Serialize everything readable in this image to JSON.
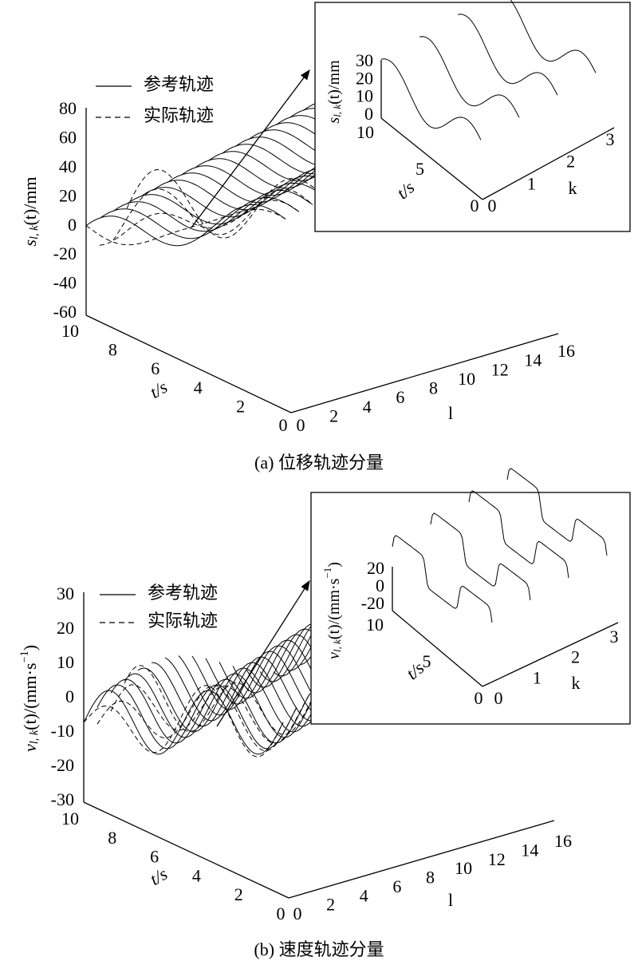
{
  "figures": [
    {
      "caption": "(a) 位移轨迹分量",
      "legend": [
        "参考轨迹",
        "实际轨迹"
      ],
      "z_label": [
        "s",
        "l, k",
        "(t)/mm"
      ],
      "z_ticks": [
        80,
        60,
        40,
        20,
        0,
        -20,
        -40,
        -60
      ],
      "t_label": "t/s",
      "t_ticks": [
        10,
        8,
        6,
        4,
        2,
        0
      ],
      "l_label": "l",
      "l_ticks": [
        0,
        2,
        4,
        6,
        8,
        10,
        12,
        14,
        16
      ],
      "inset": {
        "z_label": [
          "s",
          "l, k",
          "(t)/mm"
        ],
        "z_ticks": [
          30,
          20,
          10,
          0
        ],
        "t_label": "t/s",
        "t_ticks": [
          10,
          5,
          0
        ],
        "k_label": "k",
        "k_ticks": [
          0,
          1,
          2,
          3
        ]
      }
    },
    {
      "caption": "(b) 速度轨迹分量",
      "legend": [
        "参考轨迹",
        "实际轨迹"
      ],
      "z_label": [
        "v",
        "l, k",
        "(t)/(mm·s",
        "−1",
        ")"
      ],
      "z_ticks": [
        30,
        20,
        10,
        0,
        -10,
        -20,
        -30
      ],
      "t_label": "t/s",
      "t_ticks": [
        10,
        8,
        6,
        4,
        2,
        0
      ],
      "l_label": "l",
      "l_ticks": [
        0,
        2,
        4,
        6,
        8,
        10,
        12,
        14,
        16
      ],
      "inset": {
        "z_label": [
          "v",
          "l, k",
          "(t)/(mm·s",
          "−1",
          ")"
        ],
        "z_ticks": [
          20,
          0,
          -20
        ],
        "t_label": "t/s",
        "t_ticks": [
          10,
          5,
          0
        ],
        "k_label": "k",
        "k_ticks": [
          0,
          1,
          2,
          3
        ]
      }
    }
  ]
}
